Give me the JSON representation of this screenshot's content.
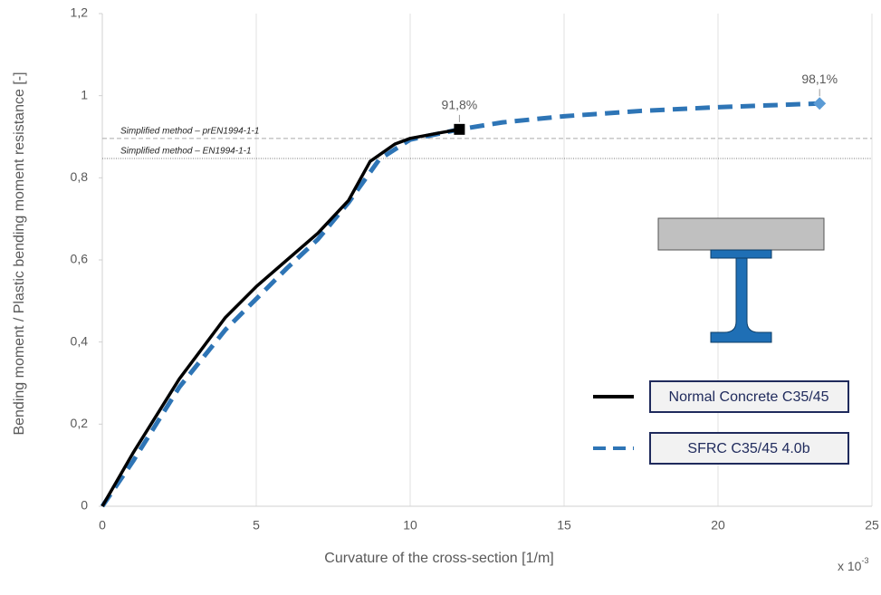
{
  "chart_data": {
    "type": "line",
    "x_label": "Curvature of the cross-section [1/m]",
    "y_label": "Bending moment / Plastic bending moment resistance [-]",
    "x_multiplier": {
      "base": "x 10",
      "exponent": "-3"
    },
    "xlim": [
      0,
      25
    ],
    "xticks": [
      0,
      5,
      10,
      15,
      20,
      25
    ],
    "ylim": [
      0,
      1.2
    ],
    "yticks": [
      0,
      {
        "value": 0.2,
        "label": "0,2"
      },
      {
        "value": 0.4,
        "label": "0,4"
      },
      {
        "value": 0.6,
        "label": "0,6"
      },
      {
        "value": 0.8,
        "label": "0,8"
      },
      1,
      {
        "value": 1.2,
        "label": "1,2"
      }
    ],
    "grid": "x",
    "series": [
      {
        "name": "Normal Concrete C35/45",
        "color": "#000000",
        "dash": "solid",
        "x": [
          0,
          1,
          2.5,
          4,
          5,
          6,
          7,
          8,
          8.7,
          9.5,
          10,
          11,
          11.6
        ],
        "values": [
          0,
          0.13,
          0.31,
          0.46,
          0.535,
          0.6,
          0.665,
          0.745,
          0.84,
          0.882,
          0.896,
          0.91,
          0.918
        ]
      },
      {
        "name": "SFRC C35/45 4.0b",
        "color": "#2e75b6",
        "dash": "dashed",
        "x": [
          0,
          1,
          2.5,
          4,
          5,
          6,
          7,
          8,
          9,
          10,
          11.6,
          13,
          15,
          17.5,
          20,
          23.3
        ],
        "values": [
          0,
          0.11,
          0.29,
          0.43,
          0.505,
          0.58,
          0.65,
          0.74,
          0.845,
          0.893,
          0.918,
          0.935,
          0.95,
          0.963,
          0.972,
          0.981
        ]
      }
    ],
    "reference_lines": [
      {
        "label": "Simplified method – prEN1994-1-1",
        "value": 0.896,
        "color": "#aaaaaa",
        "dash": "dashed"
      },
      {
        "label": "Simplified method – EN1994-1-1",
        "value": 0.847,
        "color": "#777777",
        "dash": "dotted"
      }
    ],
    "annotations": [
      {
        "text": "91,8%",
        "x": 11.6,
        "y": 0.918,
        "marker": "square",
        "color": "#000000"
      },
      {
        "text": "98,1%",
        "x": 23.3,
        "y": 0.981,
        "marker": "diamond",
        "color": "#5b9bd5"
      }
    ]
  }
}
